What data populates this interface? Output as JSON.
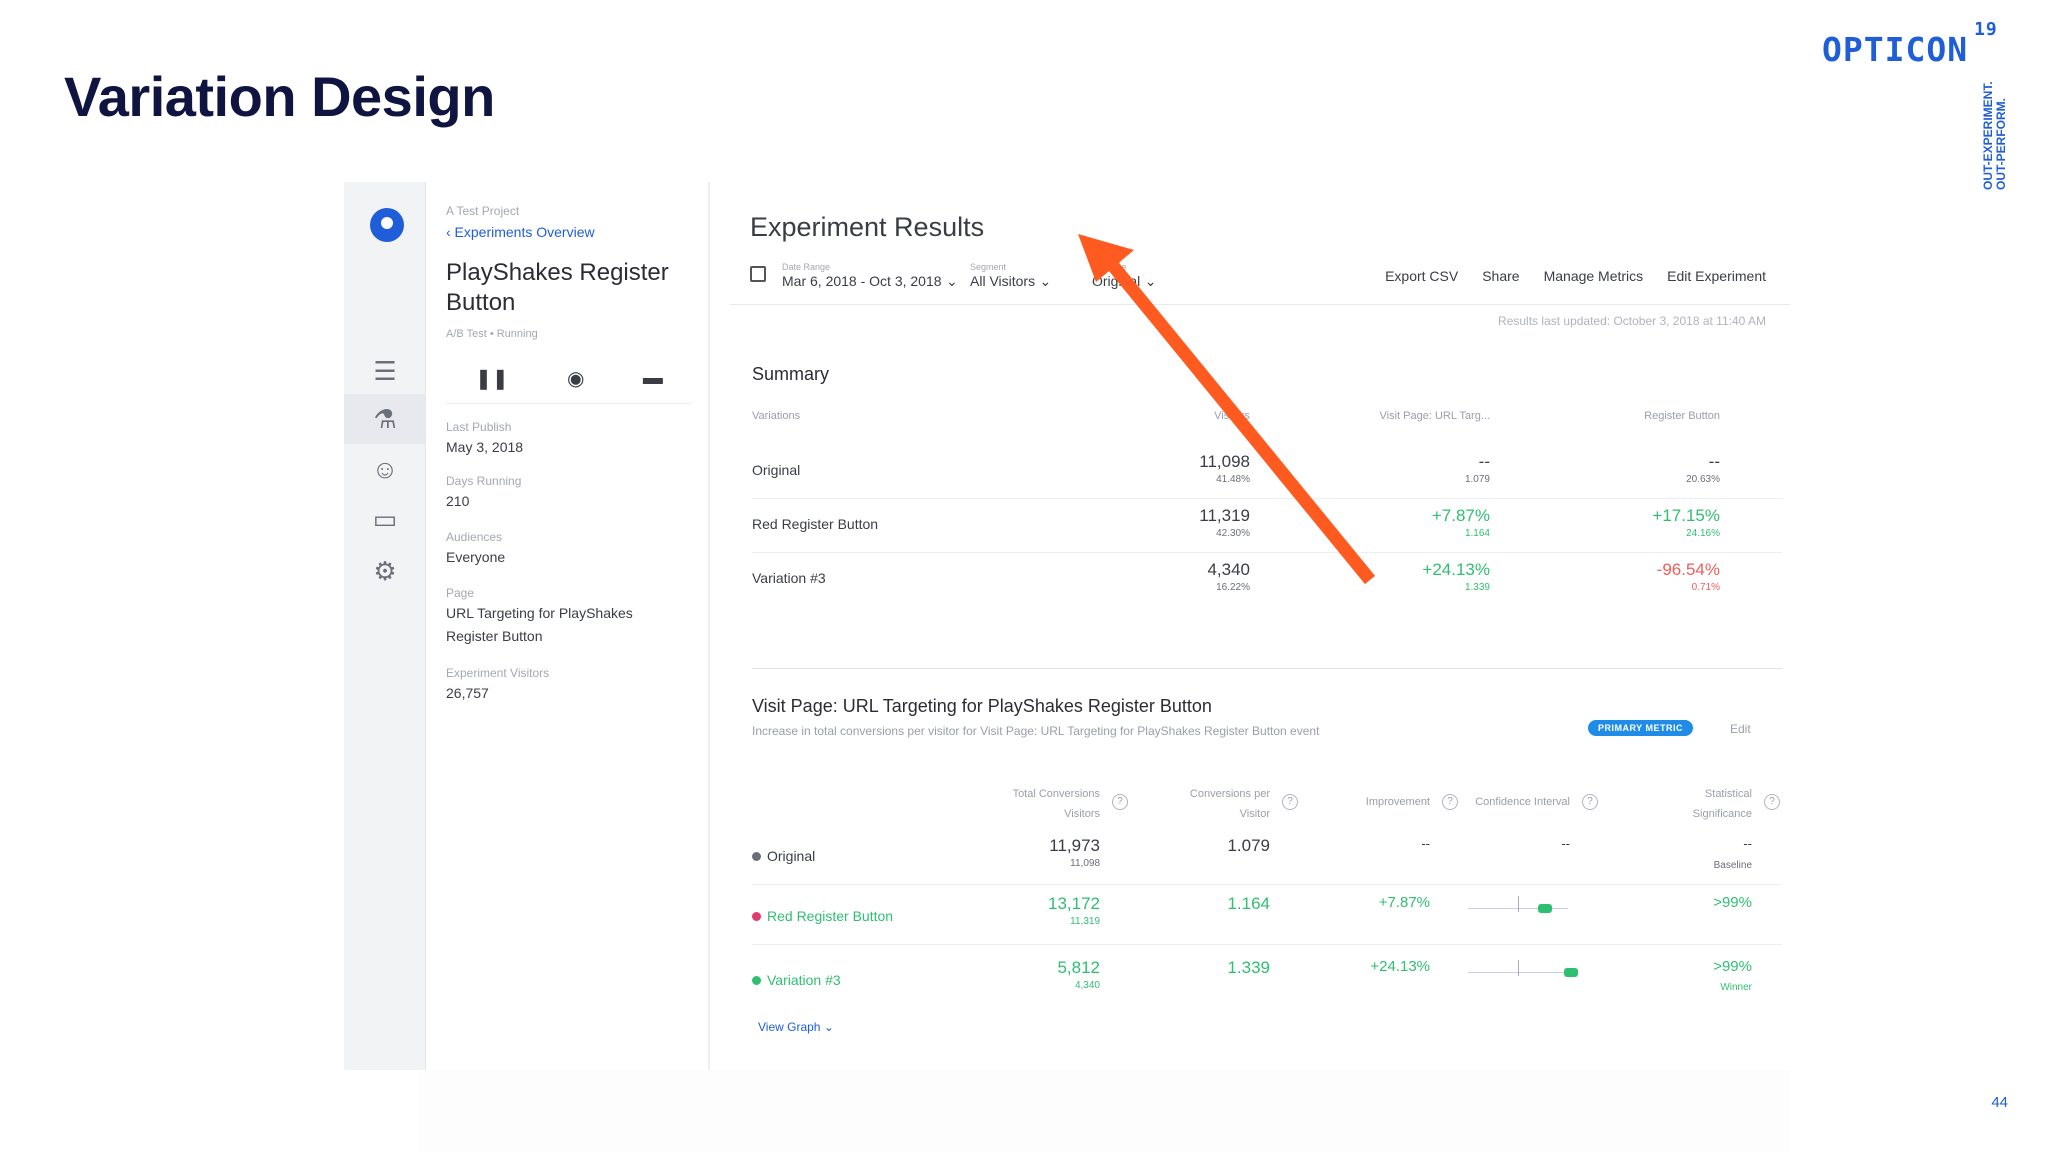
{
  "slide": {
    "title": "Variation Design",
    "brand": "OPTICON",
    "brand_sup": "19",
    "tagline_line1": "OUT-EXPERIMENT.",
    "tagline_line2": "OUT-PERFORM.",
    "page_number": "44",
    "arrow_color": "#ff5a1f"
  },
  "sidebar": {
    "project": "A Test Project",
    "breadcrumb": "‹ Experiments Overview",
    "experiment_title": "PlayShakes Register Button",
    "status": "A/B Test  •  Running",
    "fields": [
      {
        "label": "Last Publish",
        "value": "May 3, 2018"
      },
      {
        "label": "Days Running",
        "value": "210"
      },
      {
        "label": "Audiences",
        "value": "Everyone"
      },
      {
        "label": "Page",
        "value": "URL Targeting for PlayShakes Register Button"
      },
      {
        "label": "Experiment Visitors",
        "value": "26,757"
      }
    ],
    "nav_icons": [
      "list-icon",
      "beaker-icon",
      "audiences-icon",
      "screen-icon",
      "gear-icon"
    ]
  },
  "results": {
    "title": "Experiment Results",
    "filters": [
      {
        "label": "Date Range",
        "value": "Mar 6, 2018 - Oct 3, 2018"
      },
      {
        "label": "Segment",
        "value": "All Visitors"
      },
      {
        "label": "Baseline",
        "value": "Original"
      }
    ],
    "actions": [
      "Export CSV",
      "Share",
      "Manage Metrics",
      "Edit Experiment"
    ],
    "updated": "Results last updated: October 3, 2018 at 11:40 AM",
    "summary": {
      "title": "Summary",
      "headers": [
        "Variations",
        "Visitors",
        "Visit Page: URL Targ...",
        "Register Button"
      ],
      "rows": [
        {
          "name": "Original",
          "visitors": "11,098",
          "visitors_pct": "41.48%",
          "m1": "--",
          "m1_sub": "1.079",
          "m2": "--",
          "m2_sub": "20.63%"
        },
        {
          "name": "Red Register Button",
          "visitors": "11,319",
          "visitors_pct": "42.30%",
          "m1": "+7.87%",
          "m1_sub": "1.164",
          "m2": "+17.15%",
          "m2_sub": "24.16%"
        },
        {
          "name": "Variation #3",
          "visitors": "4,340",
          "visitors_pct": "16.22%",
          "m1": "+24.13%",
          "m1_sub": "1.339",
          "m2": "-96.54%",
          "m2_sub": "0.71%"
        }
      ]
    },
    "metric": {
      "title": "Visit Page: URL Targeting for PlayShakes Register Button",
      "subtitle": "Increase in total conversions per visitor for Visit Page: URL Targeting for PlayShakes Register Button event",
      "badge": "PRIMARY METRIC",
      "edit": "Edit",
      "headers": {
        "total_conv_1": "Total Conversions",
        "total_conv_2": "Visitors",
        "conv_per_1": "Conversions per",
        "conv_per_2": "Visitor",
        "improvement": "Improvement",
        "ci": "Confidence Interval",
        "sig_1": "Statistical",
        "sig_2": "Significance"
      },
      "rows": [
        {
          "name": "Original",
          "total": "11,973",
          "visitors": "11,098",
          "per_visitor": "1.079",
          "improvement": "--",
          "ci": "--",
          "significance": "--",
          "sig_sub": "Baseline",
          "dot": "#6b6f7a"
        },
        {
          "name": "Red Register Button",
          "total": "13,172",
          "visitors": "11,319",
          "per_visitor": "1.164",
          "improvement": "+7.87%",
          "significance": ">99%",
          "sig_sub": "",
          "dot": "#e23a6a"
        },
        {
          "name": "Variation #3",
          "total": "5,812",
          "visitors": "4,340",
          "per_visitor": "1.339",
          "improvement": "+24.13%",
          "significance": ">99%",
          "sig_sub": "Winner",
          "dot": "#2fbf71"
        }
      ],
      "view_graph": "View Graph ⌄"
    }
  }
}
